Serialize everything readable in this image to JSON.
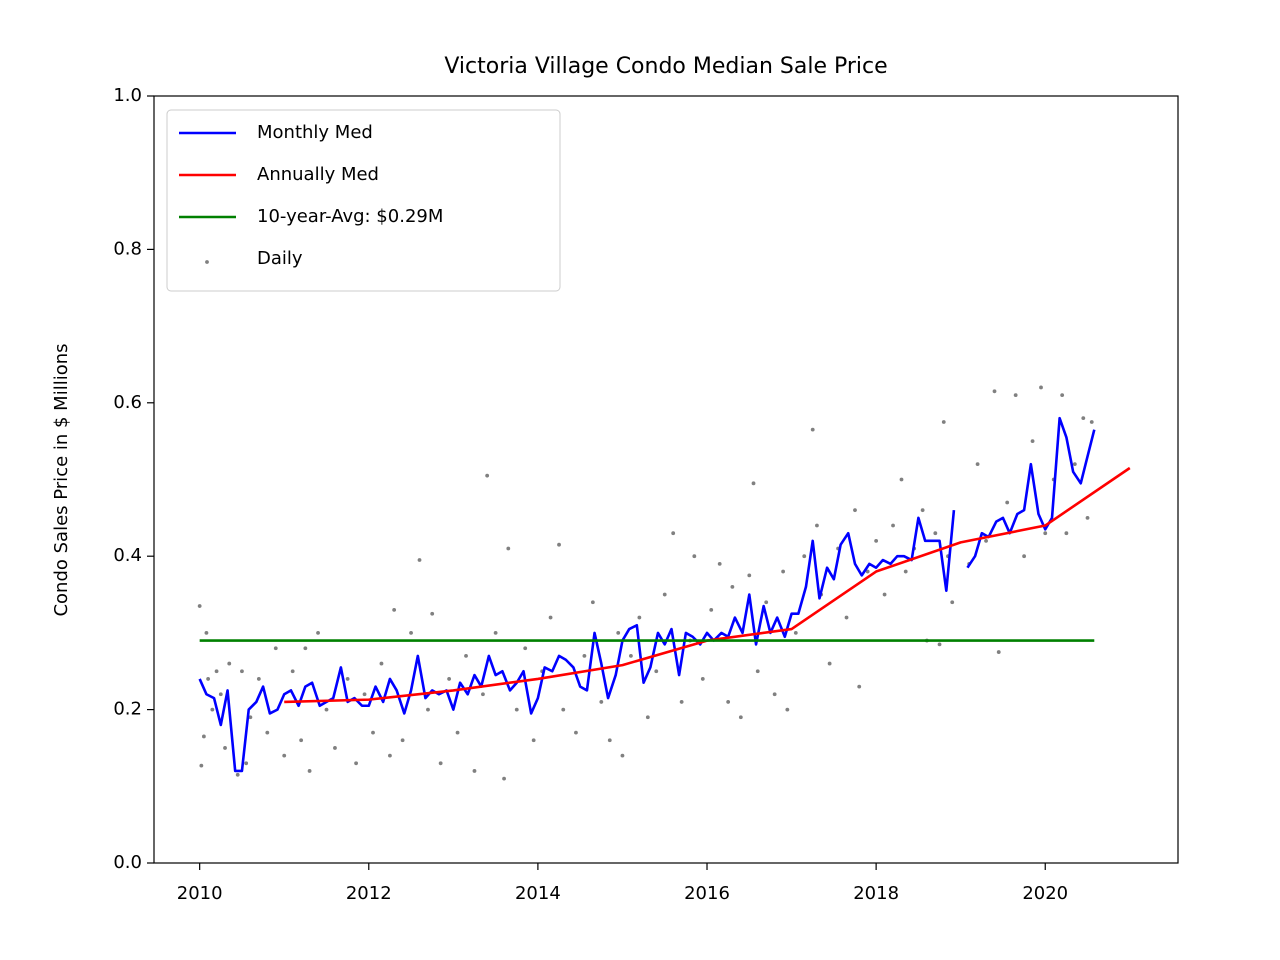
{
  "chart_data": {
    "type": "line",
    "title": "Victoria Village Condo Median Sale Price",
    "ylabel": "Condo Sales Price in $ Millions",
    "xlim": [
      2009.46,
      2021.57
    ],
    "ylim": [
      0,
      1
    ],
    "xticks": [
      2010,
      2012,
      2014,
      2016,
      2018,
      2020
    ],
    "yticks": [
      {
        "value": 0,
        "label": "0.0"
      },
      0.2,
      0.4,
      0.6,
      0.8,
      {
        "value": 1,
        "label": "1.0"
      }
    ],
    "grid": false,
    "legend": "upper left",
    "series": [
      {
        "name": "Monthly Med",
        "type": "line",
        "color": "#0000ff",
        "x": [
          2010.0,
          2010.08,
          2010.17,
          2010.25,
          2010.33,
          2010.42,
          2010.5,
          2010.58,
          2010.67,
          2010.75,
          2010.83,
          2010.92,
          2011.0,
          2011.08,
          2011.17,
          2011.25,
          2011.33,
          2011.42,
          2011.5,
          2011.58,
          2011.67,
          2011.75,
          2011.83,
          2011.92,
          2012.0,
          2012.08,
          2012.17,
          2012.25,
          2012.33,
          2012.42,
          2012.5,
          2012.58,
          2012.67,
          2012.75,
          2012.83,
          2012.92,
          2013.0,
          2013.08,
          2013.17,
          2013.25,
          2013.33,
          2013.42,
          2013.5,
          2013.58,
          2013.67,
          2013.75,
          2013.83,
          2013.92,
          2014.0,
          2014.08,
          2014.17,
          2014.25,
          2014.33,
          2014.42,
          2014.5,
          2014.58,
          2014.67,
          2014.75,
          2014.83,
          2014.92,
          2015.0,
          2015.08,
          2015.17,
          2015.25,
          2015.33,
          2015.42,
          2015.5,
          2015.58,
          2015.67,
          2015.75,
          2015.83,
          2015.92,
          2016.0,
          2016.08,
          2016.17,
          2016.25,
          2016.33,
          2016.42,
          2016.5,
          2016.58,
          2016.67,
          2016.75,
          2016.83,
          2016.92,
          2017.0,
          2017.08,
          2017.17,
          2017.25,
          2017.33,
          2017.42,
          2017.5,
          2017.58,
          2017.67,
          2017.75,
          2017.83,
          2017.92,
          2018.0,
          2018.08,
          2018.17,
          2018.25,
          2018.33,
          2018.42,
          2018.5,
          2018.58,
          2018.67,
          2018.75,
          2018.83,
          2018.92,
          2019.0,
          2019.08,
          2019.17,
          2019.25,
          2019.33,
          2019.42,
          2019.5,
          2019.58,
          2019.67,
          2019.75,
          2019.83,
          2019.92,
          2020.0,
          2020.08,
          2020.17,
          2020.25,
          2020.33,
          2020.42,
          2020.5,
          2020.58
        ],
        "values": [
          0.24,
          0.22,
          0.215,
          0.18,
          0.225,
          0.12,
          0.12,
          0.2,
          0.21,
          0.23,
          0.195,
          0.2,
          0.22,
          0.225,
          0.205,
          0.23,
          0.235,
          0.205,
          0.21,
          0.215,
          0.255,
          0.21,
          0.215,
          0.205,
          0.205,
          0.23,
          0.21,
          0.24,
          0.225,
          0.195,
          0.225,
          0.27,
          0.215,
          0.225,
          0.22,
          0.225,
          0.2,
          0.235,
          0.22,
          0.245,
          0.23,
          0.27,
          0.245,
          0.25,
          0.225,
          0.235,
          0.25,
          0.195,
          0.215,
          0.255,
          0.25,
          0.27,
          0.265,
          0.255,
          0.23,
          0.225,
          0.3,
          0.26,
          0.215,
          0.245,
          0.29,
          0.305,
          0.31,
          0.235,
          0.255,
          0.3,
          0.285,
          0.305,
          0.245,
          0.3,
          0.295,
          0.285,
          0.3,
          0.29,
          0.3,
          0.295,
          0.32,
          0.3,
          0.35,
          0.285,
          0.335,
          0.3,
          0.32,
          0.295,
          0.325,
          0.325,
          0.36,
          0.42,
          0.345,
          0.385,
          0.37,
          0.415,
          0.43,
          0.39,
          0.375,
          0.39,
          0.385,
          0.395,
          0.39,
          0.4,
          0.4,
          0.395,
          0.45,
          0.42,
          0.42,
          0.42,
          0.355,
          0.46,
          null,
          0.385,
          0.4,
          0.43,
          0.425,
          0.445,
          0.45,
          0.43,
          0.455,
          0.46,
          0.52,
          0.455,
          0.435,
          0.45,
          0.58,
          0.555,
          0.51,
          0.495,
          0.53,
          0.565
        ]
      },
      {
        "name": "Annually Med",
        "type": "line",
        "color": "#ff0000",
        "x": [
          2011,
          2012,
          2013,
          2014,
          2015,
          2016,
          2017,
          2018,
          2019,
          2020,
          2021
        ],
        "values": [
          0.21,
          0.213,
          0.225,
          0.24,
          0.258,
          0.29,
          0.305,
          0.38,
          0.418,
          0.44,
          0.515
        ]
      },
      {
        "name": "10-year-Avg: $0.29M",
        "type": "line",
        "color": "#008000",
        "x": [
          2010,
          2020.58
        ],
        "values": [
          0.29,
          0.29
        ]
      },
      {
        "name": "Daily",
        "type": "scatter",
        "color": "#808080",
        "x": [
          2010.0,
          2010.02,
          2010.05,
          2010.08,
          2010.1,
          2010.15,
          2010.2,
          2010.25,
          2010.3,
          2010.35,
          2010.45,
          2010.5,
          2010.55,
          2010.6,
          2010.7,
          2010.8,
          2010.9,
          2011.0,
          2011.1,
          2011.2,
          2011.25,
          2011.3,
          2011.4,
          2011.5,
          2011.6,
          2011.75,
          2011.85,
          2011.95,
          2012.05,
          2012.15,
          2012.25,
          2012.3,
          2012.4,
          2012.5,
          2012.6,
          2012.7,
          2012.75,
          2012.85,
          2012.95,
          2013.05,
          2013.15,
          2013.25,
          2013.35,
          2013.4,
          2013.5,
          2013.6,
          2013.65,
          2013.75,
          2013.85,
          2013.95,
          2014.05,
          2014.15,
          2014.25,
          2014.3,
          2014.45,
          2014.55,
          2014.65,
          2014.75,
          2014.85,
          2014.95,
          2015.0,
          2015.1,
          2015.2,
          2015.3,
          2015.4,
          2015.5,
          2015.6,
          2015.7,
          2015.8,
          2015.85,
          2015.95,
          2016.05,
          2016.15,
          2016.25,
          2016.3,
          2016.4,
          2016.5,
          2016.55,
          2016.6,
          2016.7,
          2016.8,
          2016.9,
          2016.95,
          2017.05,
          2017.15,
          2017.25,
          2017.3,
          2017.35,
          2017.45,
          2017.55,
          2017.65,
          2017.75,
          2017.8,
          2017.9,
          2018.0,
          2018.1,
          2018.2,
          2018.3,
          2018.35,
          2018.45,
          2018.55,
          2018.6,
          2018.7,
          2018.75,
          2018.8,
          2018.85,
          2018.9,
          2019.1,
          2019.2,
          2019.3,
          2019.4,
          2019.45,
          2019.55,
          2019.65,
          2019.75,
          2019.85,
          2019.95,
          2020.0,
          2020.1,
          2020.2,
          2020.25,
          2020.35,
          2020.45,
          2020.5,
          2020.55
        ],
        "values": [
          0.335,
          0.127,
          0.165,
          0.3,
          0.24,
          0.2,
          0.25,
          0.22,
          0.15,
          0.26,
          0.115,
          0.25,
          0.13,
          0.19,
          0.24,
          0.17,
          0.28,
          0.14,
          0.25,
          0.16,
          0.28,
          0.12,
          0.3,
          0.2,
          0.15,
          0.24,
          0.13,
          0.22,
          0.17,
          0.26,
          0.14,
          0.33,
          0.16,
          0.3,
          0.395,
          0.2,
          0.325,
          0.13,
          0.24,
          0.17,
          0.27,
          0.12,
          0.22,
          0.505,
          0.3,
          0.11,
          0.41,
          0.2,
          0.28,
          0.16,
          0.25,
          0.32,
          0.415,
          0.2,
          0.17,
          0.27,
          0.34,
          0.21,
          0.16,
          0.3,
          0.14,
          0.27,
          0.32,
          0.19,
          0.25,
          0.35,
          0.43,
          0.21,
          0.29,
          0.4,
          0.24,
          0.33,
          0.39,
          0.21,
          0.36,
          0.19,
          0.375,
          0.495,
          0.25,
          0.34,
          0.22,
          0.38,
          0.2,
          0.3,
          0.4,
          0.565,
          0.44,
          0.35,
          0.26,
          0.41,
          0.32,
          0.46,
          0.23,
          0.38,
          0.42,
          0.35,
          0.44,
          0.5,
          0.38,
          0.41,
          0.46,
          0.29,
          0.43,
          0.285,
          0.575,
          0.4,
          0.34,
          0.39,
          0.52,
          0.42,
          0.615,
          0.275,
          0.47,
          0.61,
          0.4,
          0.55,
          0.62,
          0.43,
          0.5,
          0.61,
          0.43,
          0.52,
          0.58,
          0.45,
          0.575
        ]
      }
    ]
  }
}
